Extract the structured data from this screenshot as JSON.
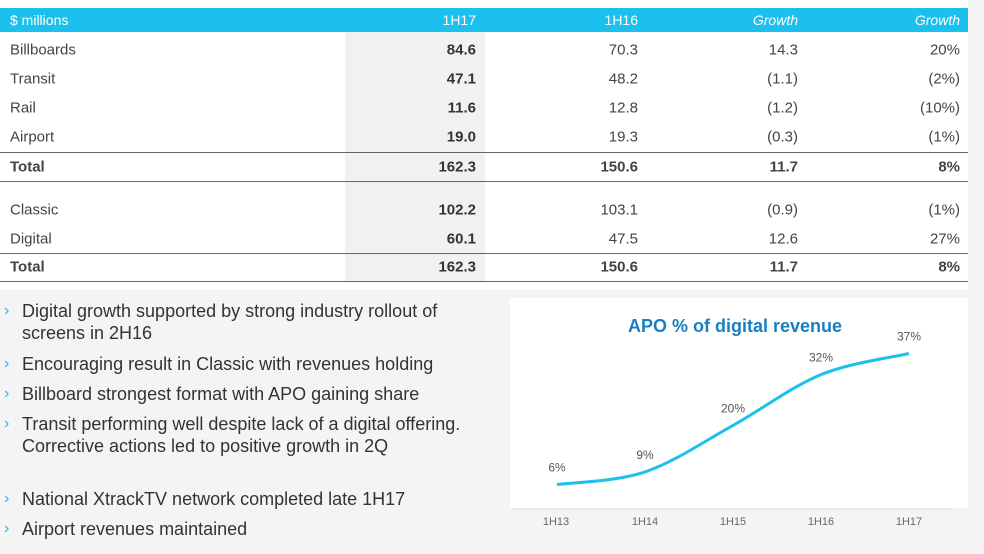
{
  "table": {
    "headers": [
      "$ millions",
      "1H17",
      "1H16",
      "Growth",
      "Growth"
    ],
    "rows1": [
      [
        "Billboards",
        "84.6",
        "70.3",
        "14.3",
        "20%"
      ],
      [
        "Transit",
        "47.1",
        "48.2",
        "(1.1)",
        "(2%)"
      ],
      [
        "Rail",
        "11.6",
        "12.8",
        "(1.2)",
        "(10%)"
      ],
      [
        "Airport",
        "19.0",
        "19.3",
        "(0.3)",
        "(1%)"
      ],
      [
        "Total",
        "162.3",
        "150.6",
        "11.7",
        "8%"
      ]
    ],
    "rows2": [
      [
        "Classic",
        "102.2",
        "103.1",
        "(0.9)",
        "(1%)"
      ],
      [
        "Digital",
        "60.1",
        "47.5",
        "12.6",
        "27%"
      ],
      [
        "Total",
        "162.3",
        "150.6",
        "11.7",
        "8%"
      ]
    ]
  },
  "bullets": [
    "Digital growth supported by strong industry rollout of screens in 2H16",
    "Encouraging result in Classic with revenues holding",
    "Billboard strongest format with APO gaining share",
    "Transit performing well despite lack of a digital offering. Corrective actions led to positive growth in 2Q",
    "National XtrackTV network completed late 1H17",
    "Airport revenues maintained"
  ],
  "bullet_glyph": "›",
  "chart_data": {
    "type": "line",
    "title": "APO % of digital revenue",
    "categories": [
      "1H13",
      "1H14",
      "1H15",
      "1H16",
      "1H17"
    ],
    "values": [
      6,
      9,
      20,
      32,
      37
    ],
    "labels": [
      "6%",
      "9%",
      "20%",
      "32%",
      "37%"
    ],
    "ylim": [
      0,
      45
    ],
    "color": "#1cc0ec",
    "grid": false
  }
}
